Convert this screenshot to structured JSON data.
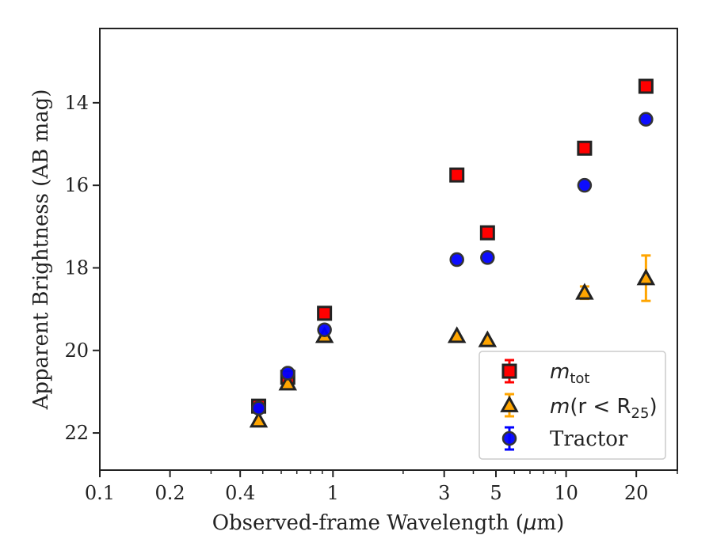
{
  "chart_data": {
    "type": "scatter",
    "xscale": "log",
    "yaxis_inverted": true,
    "xlim": [
      0.1,
      30
    ],
    "ylim": [
      12.2,
      22.9
    ],
    "xlabel_prefix": "Observed-frame Wavelength (",
    "xlabel_unit_mu": "μ",
    "xlabel_unit_rest": "m)",
    "ylabel": "Apparent Brightness (AB mag)",
    "xticks": [
      {
        "value": 0.1,
        "label": "0.1"
      },
      {
        "value": 0.2,
        "label": "0.2"
      },
      {
        "value": 0.4,
        "label": "0.4"
      },
      {
        "value": 1,
        "label": "1"
      },
      {
        "value": 3,
        "label": "3"
      },
      {
        "value": 5,
        "label": "5"
      },
      {
        "value": 10,
        "label": "10"
      },
      {
        "value": 20,
        "label": "20"
      }
    ],
    "xminor": [
      0.3,
      0.5,
      0.6,
      0.7,
      0.8,
      0.9,
      2,
      4,
      6,
      7,
      8,
      9,
      30
    ],
    "yticks": [
      {
        "value": 14,
        "label": "14"
      },
      {
        "value": 16,
        "label": "16"
      },
      {
        "value": 18,
        "label": "18"
      },
      {
        "value": 20,
        "label": "20"
      },
      {
        "value": 22,
        "label": "22"
      }
    ],
    "grid": false,
    "legend_position": "lower-right",
    "series": [
      {
        "name": "m_tot",
        "marker": "square",
        "color": "#ff0000",
        "edge_color": "#222222",
        "errorbar_color": "#ff0000",
        "x": [
          0.48,
          0.64,
          0.92,
          3.4,
          4.6,
          12.0,
          22.0
        ],
        "y": [
          21.35,
          20.65,
          19.1,
          15.75,
          17.15,
          15.1,
          13.6
        ],
        "yerr": [
          0.03,
          0.03,
          0.03,
          0.03,
          0.03,
          0.03,
          0.03
        ]
      },
      {
        "name": "m(r < R25)",
        "marker": "triangle",
        "color": "#ffa500",
        "edge_color": "#222222",
        "errorbar_color": "#ffa500",
        "x": [
          0.48,
          0.64,
          0.92,
          3.4,
          4.6,
          12.0,
          22.0
        ],
        "y": [
          21.7,
          20.8,
          19.65,
          19.65,
          19.75,
          18.6,
          18.25
        ],
        "yerr": [
          0.03,
          0.03,
          0.03,
          0.05,
          0.05,
          0.15,
          0.55
        ]
      },
      {
        "name": "Tractor",
        "marker": "circle",
        "color": "#0000ff",
        "edge_color": "#333333",
        "errorbar_color": "#0000ff",
        "x": [
          0.48,
          0.64,
          0.92,
          3.4,
          4.6,
          12.0,
          22.0
        ],
        "y": [
          21.4,
          20.55,
          19.5,
          17.8,
          17.75,
          16.0,
          14.4
        ],
        "yerr": [
          0.02,
          0.02,
          0.02,
          0.02,
          0.02,
          0.02,
          0.02
        ]
      }
    ],
    "legend": {
      "entries": [
        {
          "base": "m",
          "sub": "tot",
          "prefix": "",
          "suffix": ""
        },
        {
          "base": "m",
          "prefix": "(r < R",
          "sub": "25",
          "suffix": ")"
        },
        {
          "text": "Tractor"
        }
      ]
    }
  }
}
